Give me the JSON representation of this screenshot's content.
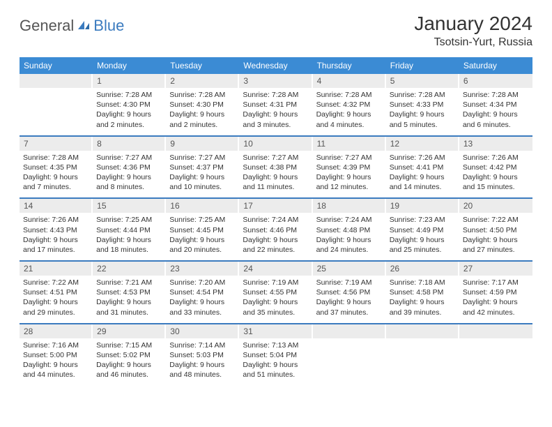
{
  "logo": {
    "general": "General",
    "blue": "Blue"
  },
  "title": {
    "month_year": "January 2024",
    "location": "Tsotsin-Yurt, Russia"
  },
  "colors": {
    "header_bg": "#3b8bd4",
    "header_text": "#ffffff",
    "daynum_bg": "#ececec",
    "border": "#3b7bbf",
    "text": "#333333",
    "logo_gray": "#555555",
    "logo_blue": "#3b7bbf"
  },
  "weekdays": [
    "Sunday",
    "Monday",
    "Tuesday",
    "Wednesday",
    "Thursday",
    "Friday",
    "Saturday"
  ],
  "weeks": [
    [
      null,
      {
        "n": "1",
        "sr": "Sunrise: 7:28 AM",
        "ss": "Sunset: 4:30 PM",
        "dl": "Daylight: 9 hours and 2 minutes."
      },
      {
        "n": "2",
        "sr": "Sunrise: 7:28 AM",
        "ss": "Sunset: 4:30 PM",
        "dl": "Daylight: 9 hours and 2 minutes."
      },
      {
        "n": "3",
        "sr": "Sunrise: 7:28 AM",
        "ss": "Sunset: 4:31 PM",
        "dl": "Daylight: 9 hours and 3 minutes."
      },
      {
        "n": "4",
        "sr": "Sunrise: 7:28 AM",
        "ss": "Sunset: 4:32 PM",
        "dl": "Daylight: 9 hours and 4 minutes."
      },
      {
        "n": "5",
        "sr": "Sunrise: 7:28 AM",
        "ss": "Sunset: 4:33 PM",
        "dl": "Daylight: 9 hours and 5 minutes."
      },
      {
        "n": "6",
        "sr": "Sunrise: 7:28 AM",
        "ss": "Sunset: 4:34 PM",
        "dl": "Daylight: 9 hours and 6 minutes."
      }
    ],
    [
      {
        "n": "7",
        "sr": "Sunrise: 7:28 AM",
        "ss": "Sunset: 4:35 PM",
        "dl": "Daylight: 9 hours and 7 minutes."
      },
      {
        "n": "8",
        "sr": "Sunrise: 7:27 AM",
        "ss": "Sunset: 4:36 PM",
        "dl": "Daylight: 9 hours and 8 minutes."
      },
      {
        "n": "9",
        "sr": "Sunrise: 7:27 AM",
        "ss": "Sunset: 4:37 PM",
        "dl": "Daylight: 9 hours and 10 minutes."
      },
      {
        "n": "10",
        "sr": "Sunrise: 7:27 AM",
        "ss": "Sunset: 4:38 PM",
        "dl": "Daylight: 9 hours and 11 minutes."
      },
      {
        "n": "11",
        "sr": "Sunrise: 7:27 AM",
        "ss": "Sunset: 4:39 PM",
        "dl": "Daylight: 9 hours and 12 minutes."
      },
      {
        "n": "12",
        "sr": "Sunrise: 7:26 AM",
        "ss": "Sunset: 4:41 PM",
        "dl": "Daylight: 9 hours and 14 minutes."
      },
      {
        "n": "13",
        "sr": "Sunrise: 7:26 AM",
        "ss": "Sunset: 4:42 PM",
        "dl": "Daylight: 9 hours and 15 minutes."
      }
    ],
    [
      {
        "n": "14",
        "sr": "Sunrise: 7:26 AM",
        "ss": "Sunset: 4:43 PM",
        "dl": "Daylight: 9 hours and 17 minutes."
      },
      {
        "n": "15",
        "sr": "Sunrise: 7:25 AM",
        "ss": "Sunset: 4:44 PM",
        "dl": "Daylight: 9 hours and 18 minutes."
      },
      {
        "n": "16",
        "sr": "Sunrise: 7:25 AM",
        "ss": "Sunset: 4:45 PM",
        "dl": "Daylight: 9 hours and 20 minutes."
      },
      {
        "n": "17",
        "sr": "Sunrise: 7:24 AM",
        "ss": "Sunset: 4:46 PM",
        "dl": "Daylight: 9 hours and 22 minutes."
      },
      {
        "n": "18",
        "sr": "Sunrise: 7:24 AM",
        "ss": "Sunset: 4:48 PM",
        "dl": "Daylight: 9 hours and 24 minutes."
      },
      {
        "n": "19",
        "sr": "Sunrise: 7:23 AM",
        "ss": "Sunset: 4:49 PM",
        "dl": "Daylight: 9 hours and 25 minutes."
      },
      {
        "n": "20",
        "sr": "Sunrise: 7:22 AM",
        "ss": "Sunset: 4:50 PM",
        "dl": "Daylight: 9 hours and 27 minutes."
      }
    ],
    [
      {
        "n": "21",
        "sr": "Sunrise: 7:22 AM",
        "ss": "Sunset: 4:51 PM",
        "dl": "Daylight: 9 hours and 29 minutes."
      },
      {
        "n": "22",
        "sr": "Sunrise: 7:21 AM",
        "ss": "Sunset: 4:53 PM",
        "dl": "Daylight: 9 hours and 31 minutes."
      },
      {
        "n": "23",
        "sr": "Sunrise: 7:20 AM",
        "ss": "Sunset: 4:54 PM",
        "dl": "Daylight: 9 hours and 33 minutes."
      },
      {
        "n": "24",
        "sr": "Sunrise: 7:19 AM",
        "ss": "Sunset: 4:55 PM",
        "dl": "Daylight: 9 hours and 35 minutes."
      },
      {
        "n": "25",
        "sr": "Sunrise: 7:19 AM",
        "ss": "Sunset: 4:56 PM",
        "dl": "Daylight: 9 hours and 37 minutes."
      },
      {
        "n": "26",
        "sr": "Sunrise: 7:18 AM",
        "ss": "Sunset: 4:58 PM",
        "dl": "Daylight: 9 hours and 39 minutes."
      },
      {
        "n": "27",
        "sr": "Sunrise: 7:17 AM",
        "ss": "Sunset: 4:59 PM",
        "dl": "Daylight: 9 hours and 42 minutes."
      }
    ],
    [
      {
        "n": "28",
        "sr": "Sunrise: 7:16 AM",
        "ss": "Sunset: 5:00 PM",
        "dl": "Daylight: 9 hours and 44 minutes."
      },
      {
        "n": "29",
        "sr": "Sunrise: 7:15 AM",
        "ss": "Sunset: 5:02 PM",
        "dl": "Daylight: 9 hours and 46 minutes."
      },
      {
        "n": "30",
        "sr": "Sunrise: 7:14 AM",
        "ss": "Sunset: 5:03 PM",
        "dl": "Daylight: 9 hours and 48 minutes."
      },
      {
        "n": "31",
        "sr": "Sunrise: 7:13 AM",
        "ss": "Sunset: 5:04 PM",
        "dl": "Daylight: 9 hours and 51 minutes."
      },
      null,
      null,
      null
    ]
  ]
}
